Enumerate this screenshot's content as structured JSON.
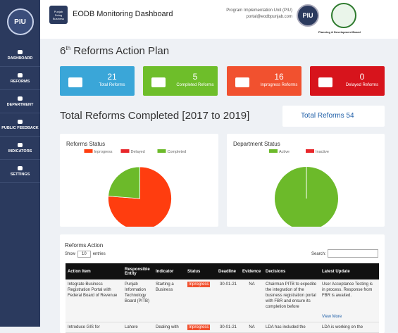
{
  "sidebar": {
    "logo": "PIU",
    "items": [
      "DASHBOARD",
      "REFORMS",
      "DEPARTMENT",
      "PUBLIC FEEDBACK",
      "INDICATORS",
      "SETTINGS"
    ]
  },
  "header": {
    "logo_lines": [
      "Punjab",
      "Doing Business"
    ],
    "title": "EODB Monitoring Dashboard",
    "org": "Program Implementation Unit (PIU)",
    "email": "portal@eodbpunjab.com",
    "badge": "PIU",
    "board": "Planning & Development Board"
  },
  "plan": {
    "ordinal": "6",
    "suffix": "th",
    "title": "Reforms Action Plan"
  },
  "cards": [
    {
      "value": 21,
      "label": "Total Reforms",
      "color": "#3aa6d8"
    },
    {
      "value": 5,
      "label": "Completed Reforms",
      "color": "#6ebe2a"
    },
    {
      "value": 16,
      "label": "Inprogress Reforms",
      "color": "#f1512f"
    },
    {
      "value": 0,
      "label": "Delayed Reforms",
      "color": "#d7141c"
    }
  ],
  "completed": {
    "title": "Total Reforms Completed [2017 to 2019]",
    "box": "Total Reforms 54"
  },
  "charts": [
    {
      "type": "pie",
      "title": "Reforms Status",
      "categories": [
        "Inprogress",
        "Delayed",
        "Completed"
      ],
      "values": [
        16,
        0,
        5
      ],
      "colors": [
        "#ff3d0f",
        "#e8262a",
        "#6cba2a"
      ]
    },
    {
      "type": "pie",
      "title": "Department Status",
      "categories": [
        "Active",
        "Inactive"
      ],
      "values": [
        100,
        0
      ],
      "colors": [
        "#6cba2a",
        "#e8262a"
      ]
    }
  ],
  "table": {
    "title": "Reforms Action",
    "show": "Show",
    "page_size": "10",
    "entries": "entries",
    "search": "Search:",
    "view_more": "View More",
    "columns": [
      "Action Item",
      "Responsible Entity",
      "Indicator",
      "Status",
      "Deadline",
      "Evidence",
      "Decisions",
      "Latest Update"
    ],
    "rows": [
      [
        "Integrate Business Registration Portal with Federal Board of Revenue",
        "Punjab Information Technology Board (PITB)",
        "Starting a Business",
        "Inprogress",
        "30-01-21",
        "NA",
        "Chairman PITB to expedite the integration of the business registration portal with FBR and ensure its completion before",
        "User Acceptance Testing is in process. Response from FBR is awaited."
      ],
      [
        "Introduce GIS for",
        "Lahore",
        "Dealing with",
        "Inprogress",
        "30-01-21",
        "NA",
        "LDA has included the",
        "LDA is working on the"
      ]
    ]
  }
}
